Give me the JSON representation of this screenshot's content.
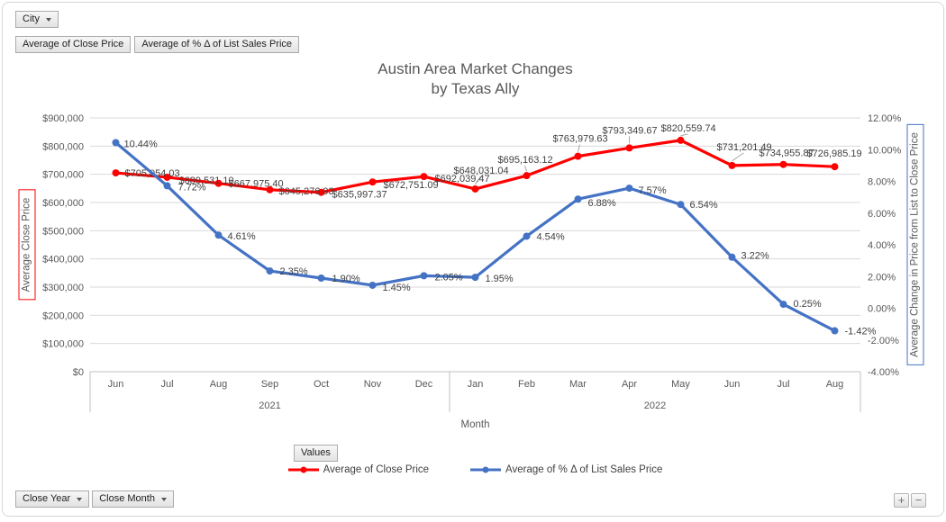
{
  "colors": {
    "series_red": "#FF0000",
    "series_blue": "#4472C4",
    "grid": "#D9D9D9",
    "axis_line": "#C0C0C0",
    "axis_text": "#595959",
    "label_text": "#404040",
    "leader_line": "#A6A6A6"
  },
  "filter_button": {
    "label": "City"
  },
  "field_buttons": [
    {
      "label": "Average of Close Price"
    },
    {
      "label": "Average of % Δ of List Sales Price"
    }
  ],
  "title": {
    "line1": "Austin Area Market Changes",
    "line2": "by Texas Ally"
  },
  "left_axis": {
    "title": "Average Close Price",
    "box_color": "#FF0000",
    "min": 0,
    "max": 900000,
    "ticks": [
      "$900,000",
      "$800,000",
      "$700,000",
      "$600,000",
      "$500,000",
      "$400,000",
      "$300,000",
      "$200,000",
      "$100,000",
      "$0"
    ]
  },
  "right_axis": {
    "title": "Average Change in Price from List to Close Price",
    "box_color": "#4472C4",
    "min": -4,
    "max": 12,
    "ticks": [
      "12.00%",
      "10.00%",
      "8.00%",
      "6.00%",
      "4.00%",
      "2.00%",
      "0.00%",
      "-2.00%",
      "-4.00%"
    ]
  },
  "x_axis": {
    "title": "Month",
    "groups": [
      {
        "year": "2021",
        "months": [
          "Jun",
          "Jul",
          "Aug",
          "Sep",
          "Oct",
          "Nov",
          "Dec"
        ]
      },
      {
        "year": "2022",
        "months": [
          "Jan",
          "Feb",
          "Mar",
          "Apr",
          "May",
          "Jun",
          "Jul",
          "Aug"
        ]
      }
    ]
  },
  "legend": {
    "button_label": "Values",
    "items": [
      {
        "label": "Average of Close Price",
        "color": "#FF0000"
      },
      {
        "label": "Average of % Δ of List Sales Price",
        "color": "#4472C4"
      }
    ]
  },
  "bottom_buttons": [
    {
      "label": "Close Year"
    },
    {
      "label": "Close Month"
    }
  ],
  "zoom_buttons": {
    "plus": "+",
    "minus": "−"
  },
  "chart_data": {
    "type": "line",
    "title": "Austin Area Market Changes by Texas Ally",
    "xlabel": "Month",
    "categories": [
      "Jun 2021",
      "Jul 2021",
      "Aug 2021",
      "Sep 2021",
      "Oct 2021",
      "Nov 2021",
      "Dec 2021",
      "Jan 2022",
      "Feb 2022",
      "Mar 2022",
      "Apr 2022",
      "May 2022",
      "Jun 2022",
      "Jul 2022",
      "Aug 2022"
    ],
    "left_ylim": [
      0,
      900000
    ],
    "right_ylim": [
      -4,
      12
    ],
    "grid": true,
    "legend_position": "bottom",
    "series": [
      {
        "name": "Average of Close Price",
        "axis": "left",
        "color": "#FF0000",
        "values": [
          705054.03,
          689531.1,
          667975.4,
          645276.93,
          635997.37,
          672751.09,
          692039.47,
          648031.04,
          695163.12,
          763979.63,
          793349.67,
          820559.74,
          731201.49,
          734955.87,
          726985.19
        ],
        "labels": [
          "$705,054.03",
          "$689,531.10",
          "$667,975.40",
          "$645,276.93",
          "$635,997.37",
          "$672,751.09",
          "$692,039.47",
          "$648,031.04",
          "$695,163.12",
          "$763,979.63",
          "$793,349.67",
          "$820,559.74",
          "$731,201.49",
          "$734,955.87",
          "$726,985.19"
        ],
        "label_dx": [
          10,
          13,
          11,
          10,
          12,
          12,
          12,
          -24,
          -32,
          -28,
          -30,
          -22,
          -17,
          -27,
          -31
        ],
        "label_dy": [
          4,
          7,
          4,
          5,
          6,
          7,
          6,
          -17,
          -14,
          -16,
          -16,
          -10,
          -17,
          -9,
          -11
        ],
        "leaders": [
          0,
          0,
          0,
          0,
          0,
          0,
          0,
          1,
          1,
          1,
          1,
          1,
          1,
          0,
          0
        ]
      },
      {
        "name": "Average of % Δ of List Sales Price",
        "axis": "right",
        "color": "#4472C4",
        "values": [
          10.44,
          7.72,
          4.61,
          2.35,
          1.9,
          1.45,
          2.05,
          1.95,
          4.54,
          6.88,
          7.57,
          6.54,
          3.22,
          0.25,
          -1.42
        ],
        "labels": [
          "10.44%",
          "7.72%",
          "4.61%",
          "2.35%",
          "1.90%",
          "1.45%",
          "2.05%",
          "1.95%",
          "4.54%",
          "6.88%",
          "7.57%",
          "6.54%",
          "3.22%",
          "0.25%",
          "-1.42%"
        ],
        "label_dx": [
          9,
          12,
          10,
          11,
          12,
          11,
          12,
          11,
          11,
          11,
          10,
          10,
          10,
          11,
          11
        ],
        "label_dy": [
          5,
          5,
          5,
          4,
          4,
          6,
          5,
          5,
          4,
          8,
          6,
          4,
          2,
          3,
          4
        ],
        "leaders": [
          0,
          0,
          0,
          0,
          0,
          0,
          0,
          0,
          0,
          0,
          0,
          0,
          0,
          0,
          0
        ]
      }
    ]
  }
}
